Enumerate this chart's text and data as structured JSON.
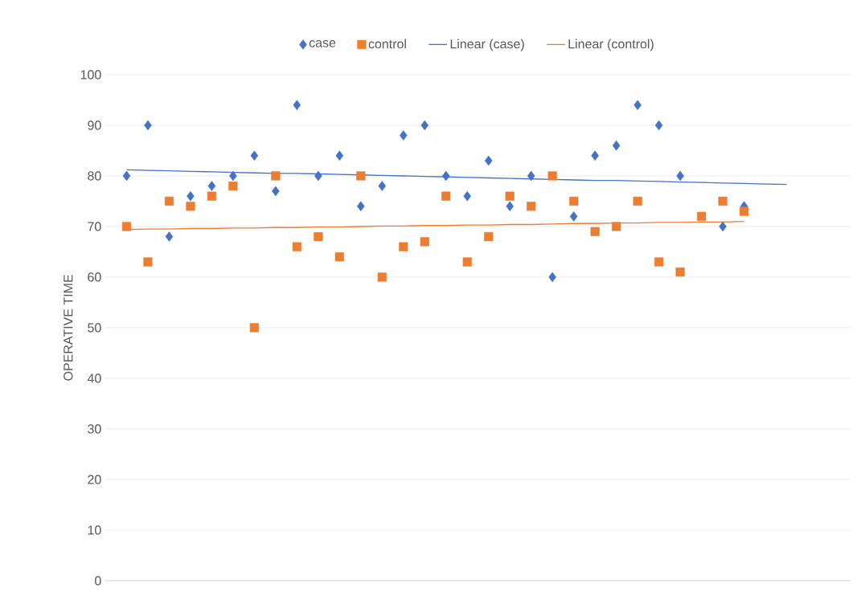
{
  "chart_data": {
    "type": "scatter",
    "ylabel": "OPERATIVE TIME",
    "categories": [
      null,
      null,
      null,
      null,
      null,
      null,
      null,
      null,
      null,
      null,
      null,
      null,
      null,
      null,
      null,
      null,
      null,
      null,
      null,
      null,
      null,
      null,
      null,
      null,
      null,
      null,
      null,
      null,
      null,
      null,
      null,
      null
    ],
    "ylim": [
      0,
      100
    ],
    "yticks": [
      0,
      10,
      20,
      30,
      40,
      50,
      60,
      70,
      80,
      90,
      100
    ],
    "tick_labels": "y",
    "grid": "y",
    "legend": "top",
    "series": [
      {
        "name": "case",
        "color": "#4472c4",
        "marker": "diamond",
        "values": [
          80,
          90,
          68,
          76,
          78,
          80,
          84,
          77,
          94,
          80,
          84,
          74,
          78,
          88,
          90,
          80,
          76,
          83,
          74,
          80,
          60,
          72,
          84,
          86,
          94,
          90,
          80,
          null,
          70,
          74,
          null,
          null
        ]
      },
      {
        "name": "control",
        "color": "#ed7d31",
        "marker": "square",
        "values": [
          70,
          63,
          75,
          74,
          76,
          78,
          50,
          80,
          66,
          68,
          64,
          80,
          60,
          66,
          67,
          76,
          63,
          68,
          76,
          74,
          80,
          75,
          69,
          70,
          75,
          63,
          61,
          72,
          75,
          73,
          null,
          null
        ]
      },
      {
        "name": "Linear (case)",
        "type": "line",
        "color": "#4472c4",
        "marker": "none",
        "line_style": "solid",
        "values": [
          81.2,
          81.1,
          81.0,
          80.9,
          80.8,
          80.7,
          80.6,
          80.5,
          80.5,
          80.4,
          80.3,
          80.2,
          80.1,
          80.0,
          79.9,
          79.8,
          79.7,
          79.6,
          79.5,
          79.4,
          79.3,
          79.2,
          79.1,
          79.1,
          79.0,
          78.9,
          78.8,
          78.7,
          78.6,
          78.5,
          78.4,
          78.3
        ]
      },
      {
        "name": "Linear (control)",
        "type": "line",
        "color": "#ed7d31",
        "marker": "none",
        "line_style": "solid",
        "values": [
          69.4,
          69.5,
          69.5,
          69.6,
          69.6,
          69.7,
          69.7,
          69.8,
          69.8,
          69.9,
          69.9,
          70.0,
          70.1,
          70.1,
          70.2,
          70.2,
          70.3,
          70.3,
          70.4,
          70.4,
          70.5,
          70.6,
          70.6,
          70.7,
          70.7,
          70.8,
          70.8,
          70.9,
          70.9,
          71.0,
          null,
          null
        ]
      }
    ]
  }
}
